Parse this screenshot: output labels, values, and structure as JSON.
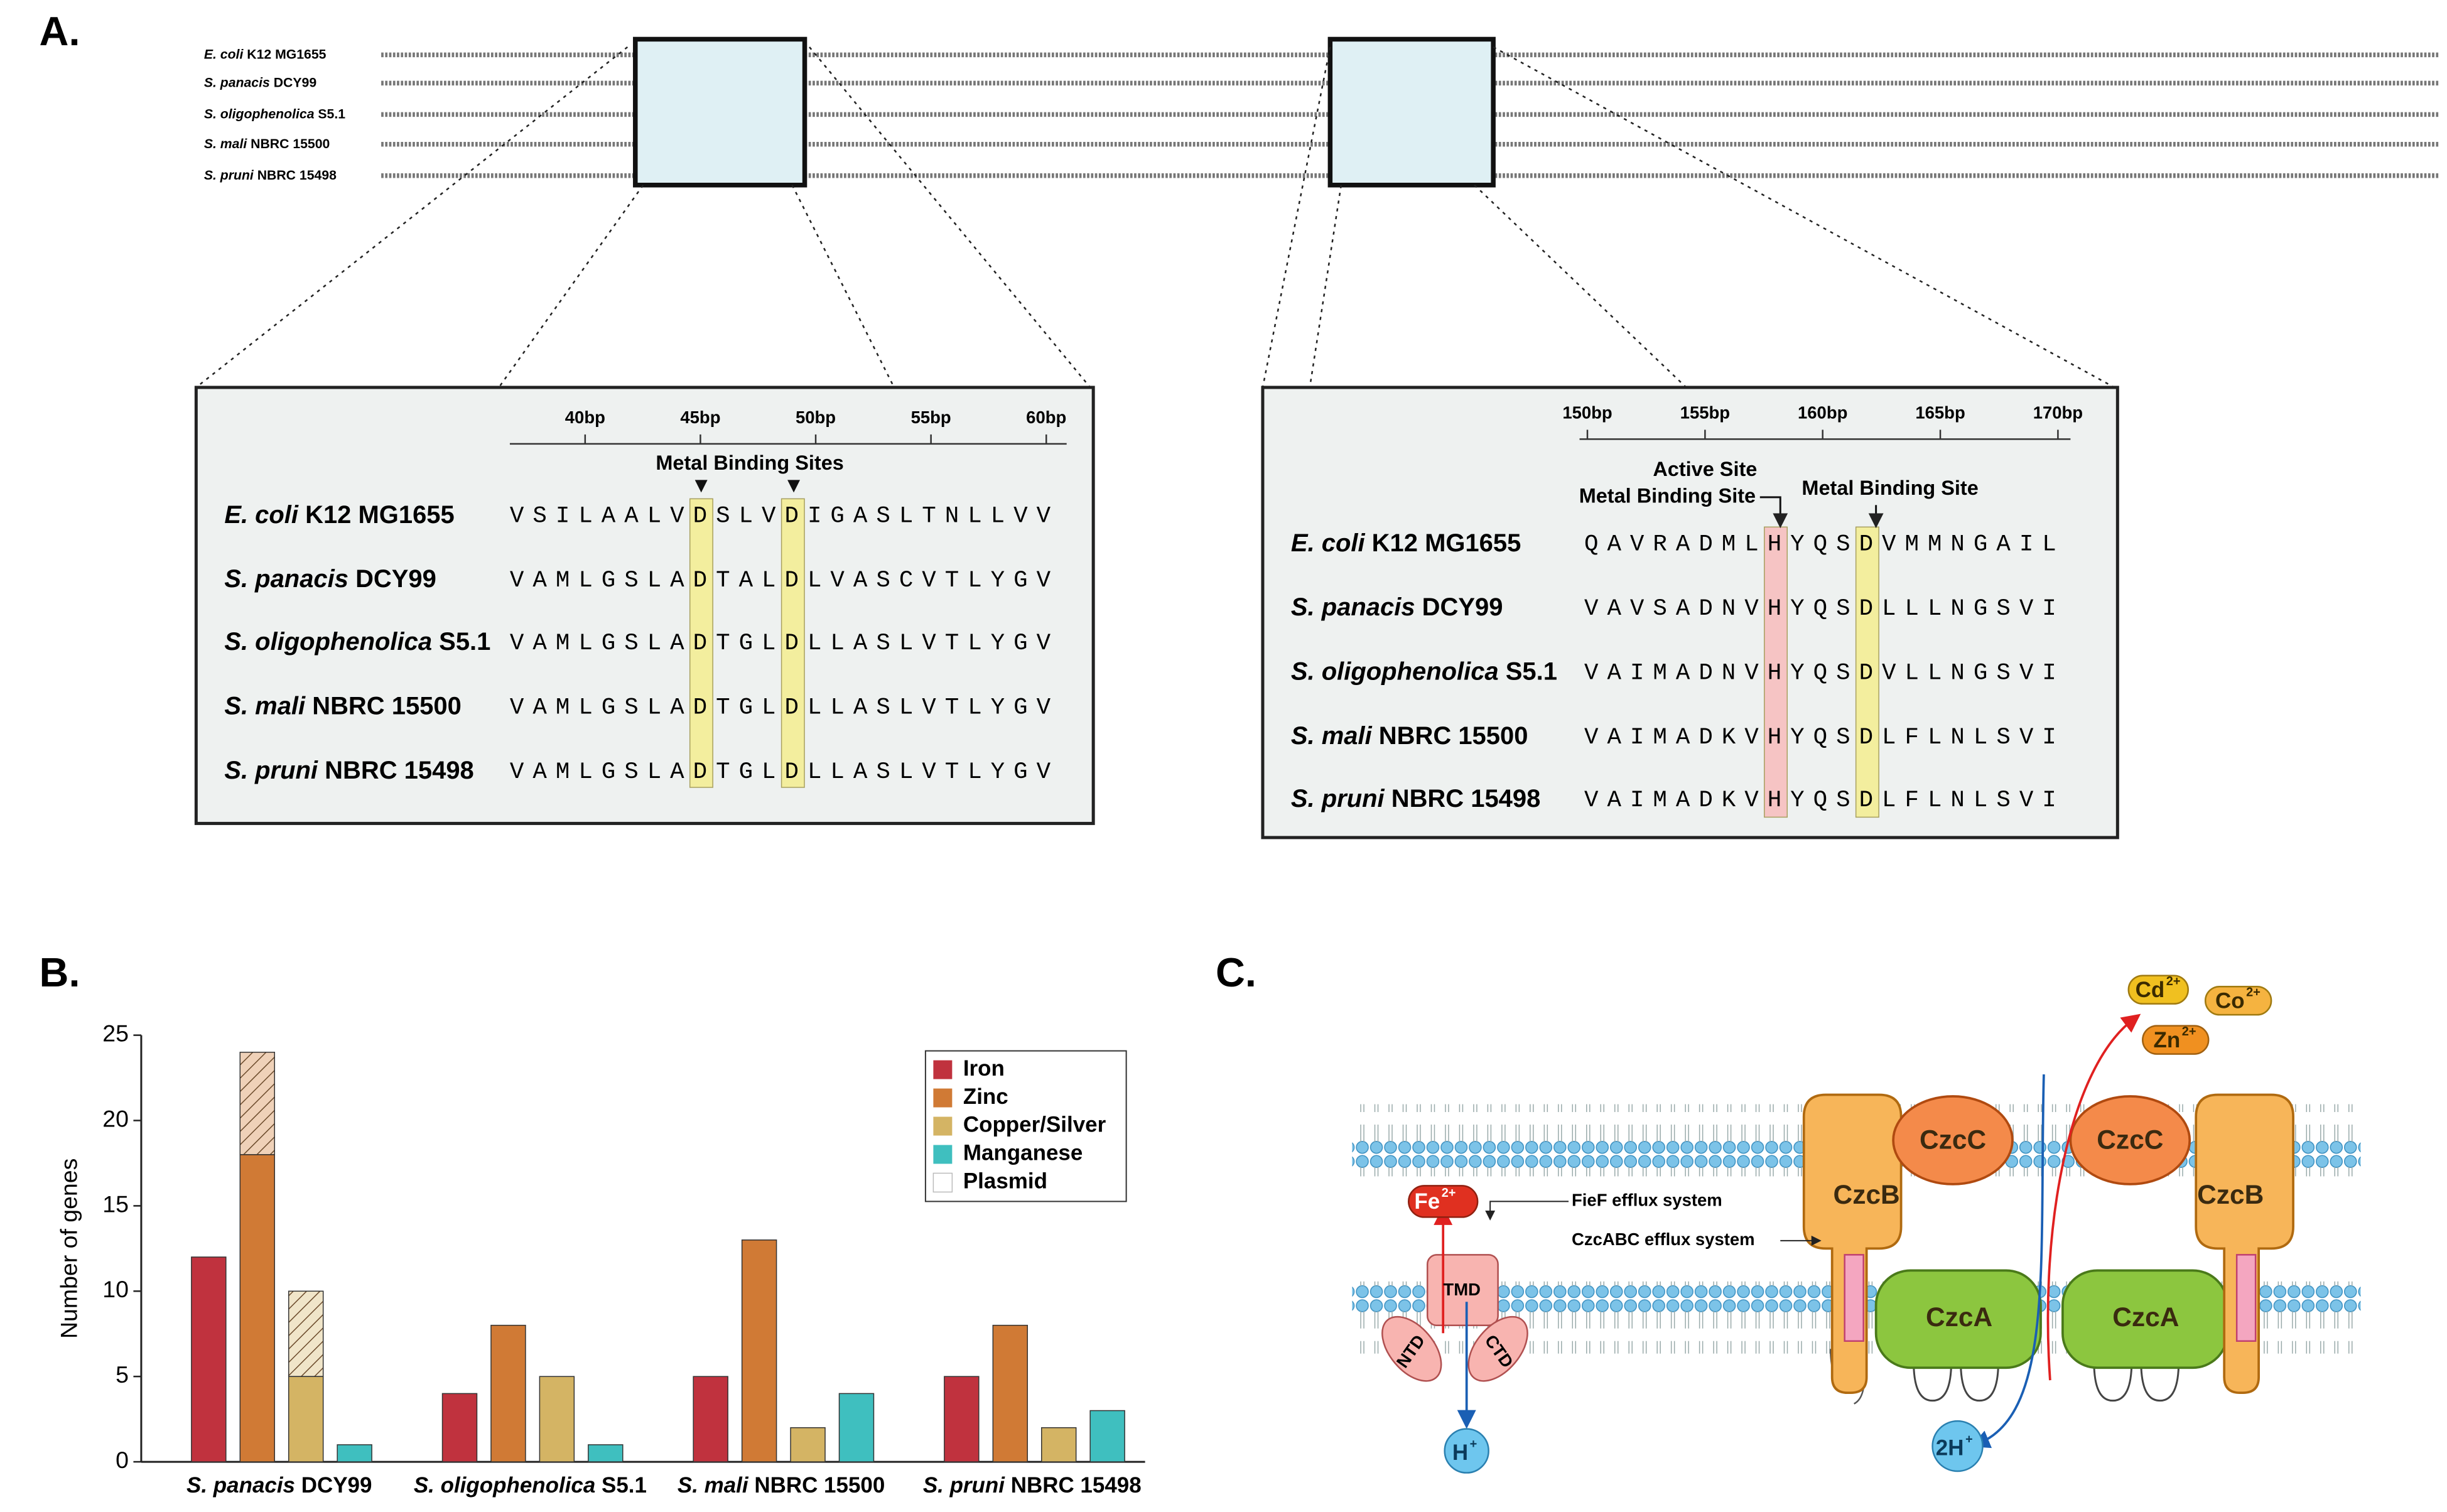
{
  "panel_labels": [
    "A.",
    "B.",
    "C."
  ],
  "alignment": {
    "species": [
      "E. coli K12 MG1655",
      "S. panacis DCY99",
      "S. oligophenolica S5.1",
      "S. mali NBRC 15500",
      "S. pruni NBRC 15498"
    ],
    "left": {
      "ruler": [
        {
          "value": 40,
          "label": "40bp"
        },
        {
          "value": 45,
          "label": "45bp"
        },
        {
          "value": 50,
          "label": "50bp"
        },
        {
          "value": 55,
          "label": "55bp"
        },
        {
          "value": 60,
          "label": "60bp"
        }
      ],
      "annotation": "Metal Binding Sites",
      "sequences": [
        "VSILAALVDSLVDIGASLTNLLVV",
        "VAMLGSLADTALDLVASCVTLYGV",
        "VAMLGSLADTGLDLLASLVTLYGV",
        "VAMLGSLADTGLDLLASLVTLYGV",
        "VAMLGSLADTGLDLLASLVTLYGV"
      ],
      "highlights": [
        {
          "column": 8,
          "color": "#f3ee9e"
        },
        {
          "column": 12,
          "color": "#f3ee9e"
        }
      ]
    },
    "right": {
      "ruler": [
        {
          "value": 150,
          "label": "150bp"
        },
        {
          "value": 155,
          "label": "155bp"
        },
        {
          "value": 160,
          "label": "160bp"
        },
        {
          "value": 165,
          "label": "165bp"
        },
        {
          "value": 170,
          "label": "170bp"
        }
      ],
      "annotation_active": "Active Site",
      "annotation_metal_1": "Metal Binding Site",
      "annotation_metal_2": "Metal Binding Site",
      "sequences": [
        "QAVRADMLHYQSDVMMNGAIL",
        "VAVSADNVHYQSDLLLNGSVI",
        "VAIMADNVHYQSDVLLNGSVI",
        "VAIMADKVHYQSDLFLNLSVI",
        "VAIMADKVHYQSDLFLNLSVI"
      ],
      "highlights": [
        {
          "column": 8,
          "color": "#f6c4c4"
        },
        {
          "column": 12,
          "color": "#f3ee9e"
        }
      ]
    }
  },
  "chart_data": {
    "type": "bar",
    "y_label": "Number of genes",
    "categories": [
      "S. panacis DCY99",
      "S. oligophenolica S5.1",
      "S. mali NBRC 15500",
      "S. pruni NBRC 15498"
    ],
    "series": [
      {
        "name": "Iron",
        "color": "#c0323e",
        "values": [
          12,
          4,
          5,
          5
        ]
      },
      {
        "name": "Zinc",
        "color": "#d07a35",
        "values": [
          18,
          8,
          13,
          8
        ],
        "plasmid_values": [
          6,
          null,
          null,
          null
        ]
      },
      {
        "name": "Copper/Silver",
        "color": "#d4b464",
        "values": [
          5,
          5,
          2,
          2
        ],
        "plasmid_values": [
          5,
          null,
          null,
          null
        ]
      },
      {
        "name": "Manganese",
        "color": "#3fbfbf",
        "values": [
          1,
          1,
          4,
          3
        ]
      }
    ],
    "plasmid_legend": "Plasmid",
    "ylim": [
      0,
      25
    ],
    "yticks": [
      0,
      5,
      10,
      15,
      20,
      25
    ],
    "legend": "top-right"
  },
  "diagram": {
    "ions": [
      {
        "base": "Cd",
        "charge": "2+"
      },
      {
        "base": "Co",
        "charge": "2+"
      },
      {
        "base": "Zn",
        "charge": "2+"
      },
      {
        "base": "Fe",
        "charge": "2+"
      }
    ],
    "protons": [
      {
        "base": "H",
        "charge": "+"
      },
      {
        "base": "2H",
        "charge": "+"
      }
    ],
    "czcC": "CzcC",
    "czcB": "CzcB",
    "czcA": "CzcA",
    "tmd": "TMD",
    "ntd": "NTD",
    "ctd": "CTD",
    "fief": "FieF efflux system",
    "czcabc": "CzcABC efflux system"
  }
}
